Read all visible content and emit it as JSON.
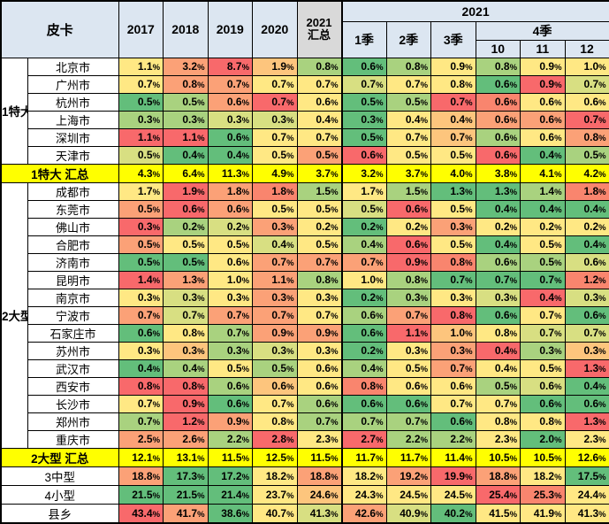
{
  "header": {
    "corner": "皮卡",
    "years": [
      "2017",
      "2018",
      "2019",
      "2020"
    ],
    "summary_line1": "2021",
    "summary_line2": "汇总",
    "group_2021": "2021",
    "quarters": [
      "1季",
      "2季",
      "3季"
    ],
    "q4": "4季",
    "months": [
      "10",
      "11",
      "12"
    ]
  },
  "colors": {
    "header_bg": "#DCE6F1",
    "summary_header_bg": "#D9D9D9",
    "highlight": "#FFFF00",
    "palette": {
      "g": "#63BE7B",
      "lg": "#A9D27F",
      "yg": "#D8DF82",
      "y": "#FFE884",
      "go": "#FDC57D",
      "o": "#FBA177",
      "do": "#F9856E",
      "r": "#F8696B"
    }
  },
  "chart_data": {
    "type": "heatmap",
    "unit": "%",
    "title": "皮卡",
    "columns": [
      "2017",
      "2018",
      "2019",
      "2020",
      "2021汇总",
      "1季",
      "2季",
      "3季",
      "10",
      "11",
      "12"
    ],
    "column_groups": {
      "year_2021_spans": [
        "1季",
        "2季",
        "3季",
        "10",
        "11",
        "12"
      ],
      "q4_spans": [
        "10",
        "11",
        "12"
      ]
    },
    "groups": [
      {
        "label": "1特大",
        "rows": 6
      },
      {
        "label": "2大型",
        "rows": 15
      }
    ],
    "rows": [
      {
        "kind": "city",
        "group": "1特大",
        "group_rows": 6,
        "group_start": true,
        "label": "北京市",
        "values": [
          1.1,
          3.2,
          8.7,
          1.9,
          0.8,
          0.6,
          0.8,
          0.9,
          0.8,
          0.9,
          1.0
        ],
        "colors": [
          "y",
          "o",
          "r",
          "go",
          "lg",
          "g",
          "lg",
          "y",
          "lg",
          "y",
          "y"
        ]
      },
      {
        "kind": "city",
        "group": "1特大",
        "label": "广州市",
        "values": [
          0.7,
          0.8,
          0.7,
          0.7,
          0.7,
          0.7,
          0.7,
          0.8,
          0.6,
          0.9,
          0.7
        ],
        "colors": [
          "y",
          "o",
          "o",
          "y",
          "y",
          "yg",
          "y",
          "y",
          "g",
          "r",
          "yg"
        ]
      },
      {
        "kind": "city",
        "group": "1特大",
        "label": "杭州市",
        "values": [
          0.5,
          0.5,
          0.6,
          0.7,
          0.6,
          0.5,
          0.5,
          0.7,
          0.6,
          0.6,
          0.6
        ],
        "colors": [
          "g",
          "lg",
          "o",
          "r",
          "y",
          "g",
          "lg",
          "r",
          "do",
          "y",
          "y"
        ]
      },
      {
        "kind": "city",
        "group": "1特大",
        "label": "上海市",
        "values": [
          0.3,
          0.3,
          0.3,
          0.3,
          0.4,
          0.3,
          0.4,
          0.4,
          0.6,
          0.6,
          0.7
        ],
        "colors": [
          "lg",
          "lg",
          "yg",
          "yg",
          "y",
          "g",
          "y",
          "go",
          "o",
          "o",
          "r"
        ]
      },
      {
        "kind": "city",
        "group": "1特大",
        "label": "深圳市",
        "values": [
          1.1,
          1.1,
          0.6,
          0.7,
          0.7,
          0.5,
          0.7,
          0.7,
          0.6,
          0.6,
          0.8
        ],
        "colors": [
          "r",
          "r",
          "g",
          "y",
          "y",
          "g",
          "y",
          "go",
          "lg",
          "y",
          "o"
        ]
      },
      {
        "kind": "city",
        "group": "1特大",
        "label": "天津市",
        "values": [
          0.5,
          0.4,
          0.4,
          0.5,
          0.5,
          0.6,
          0.5,
          0.5,
          0.6,
          0.4,
          0.5
        ],
        "colors": [
          "yg",
          "g",
          "g",
          "y",
          "o",
          "r",
          "y",
          "y",
          "r",
          "g",
          "lg"
        ]
      },
      {
        "kind": "summary",
        "label": "1特大 汇总",
        "values": [
          4.3,
          6.4,
          11.3,
          4.9,
          3.7,
          3.2,
          3.7,
          4.0,
          3.8,
          4.1,
          4.2
        ]
      },
      {
        "kind": "city",
        "group": "2大型",
        "group_rows": 15,
        "group_start": true,
        "label": "成都市",
        "values": [
          1.7,
          1.9,
          1.8,
          1.8,
          1.5,
          1.7,
          1.5,
          1.3,
          1.3,
          1.4,
          1.8
        ],
        "colors": [
          "y",
          "r",
          "o",
          "do",
          "lg",
          "y",
          "lg",
          "g",
          "g",
          "lg",
          "do"
        ]
      },
      {
        "kind": "city",
        "group": "2大型",
        "label": "东莞市",
        "values": [
          0.5,
          0.6,
          0.6,
          0.5,
          0.5,
          0.5,
          0.6,
          0.5,
          0.4,
          0.4,
          0.4
        ],
        "colors": [
          "o",
          "r",
          "o",
          "y",
          "y",
          "yg",
          "r",
          "y",
          "g",
          "g",
          "g"
        ]
      },
      {
        "kind": "city",
        "group": "2大型",
        "label": "佛山市",
        "values": [
          0.3,
          0.2,
          0.2,
          0.3,
          0.2,
          0.2,
          0.2,
          0.3,
          0.2,
          0.2,
          0.2
        ],
        "colors": [
          "r",
          "lg",
          "yg",
          "o",
          "y",
          "g",
          "y",
          "o",
          "y",
          "y",
          "y"
        ]
      },
      {
        "kind": "city",
        "group": "2大型",
        "label": "合肥市",
        "values": [
          0.5,
          0.5,
          0.5,
          0.4,
          0.5,
          0.4,
          0.6,
          0.5,
          0.4,
          0.5,
          0.4
        ],
        "colors": [
          "o",
          "y",
          "y",
          "yg",
          "y",
          "lg",
          "r",
          "y",
          "g",
          "y",
          "g"
        ]
      },
      {
        "kind": "city",
        "group": "2大型",
        "label": "济南市",
        "values": [
          0.5,
          0.5,
          0.6,
          0.7,
          0.7,
          0.7,
          0.9,
          0.8,
          0.6,
          0.5,
          0.6
        ],
        "colors": [
          "g",
          "g",
          "y",
          "o",
          "o",
          "o",
          "r",
          "do",
          "lg",
          "lg",
          "yg"
        ]
      },
      {
        "kind": "city",
        "group": "2大型",
        "label": "昆明市",
        "values": [
          1.4,
          1.3,
          1.0,
          1.1,
          0.8,
          1.0,
          0.8,
          0.7,
          0.7,
          0.7,
          1.2
        ],
        "colors": [
          "r",
          "o",
          "y",
          "o",
          "lg",
          "y",
          "lg",
          "g",
          "g",
          "g",
          "do"
        ]
      },
      {
        "kind": "city",
        "group": "2大型",
        "label": "南京市",
        "values": [
          0.3,
          0.3,
          0.3,
          0.3,
          0.3,
          0.2,
          0.3,
          0.3,
          0.3,
          0.4,
          0.3
        ],
        "colors": [
          "y",
          "yg",
          "y",
          "o",
          "y",
          "g",
          "lg",
          "y",
          "yg",
          "r",
          "yg"
        ]
      },
      {
        "kind": "city",
        "group": "2大型",
        "label": "宁波市",
        "values": [
          0.7,
          0.7,
          0.7,
          0.7,
          0.7,
          0.6,
          0.7,
          0.8,
          0.6,
          0.7,
          0.6
        ],
        "colors": [
          "o",
          "yg",
          "o",
          "o",
          "y",
          "lg",
          "o",
          "r",
          "g",
          "y",
          "g"
        ]
      },
      {
        "kind": "city",
        "group": "2大型",
        "label": "石家庄市",
        "values": [
          0.6,
          0.8,
          0.7,
          0.9,
          0.9,
          0.6,
          1.1,
          1.0,
          0.8,
          0.7,
          0.7
        ],
        "colors": [
          "g",
          "y",
          "lg",
          "o",
          "o",
          "g",
          "r",
          "go",
          "y",
          "yg",
          "yg"
        ]
      },
      {
        "kind": "city",
        "group": "2大型",
        "label": "苏州市",
        "values": [
          0.3,
          0.3,
          0.3,
          0.3,
          0.3,
          0.2,
          0.3,
          0.3,
          0.4,
          0.3,
          0.3
        ],
        "colors": [
          "y",
          "go",
          "lg",
          "yg",
          "y",
          "g",
          "y",
          "o",
          "r",
          "lg",
          "go"
        ]
      },
      {
        "kind": "city",
        "group": "2大型",
        "label": "武汉市",
        "values": [
          0.4,
          0.4,
          0.5,
          0.5,
          0.6,
          0.4,
          0.5,
          0.7,
          0.4,
          0.5,
          1.3
        ],
        "colors": [
          "g",
          "lg",
          "y",
          "lg",
          "y",
          "lg",
          "y",
          "o",
          "y",
          "y",
          "r"
        ]
      },
      {
        "kind": "city",
        "group": "2大型",
        "label": "西安市",
        "values": [
          0.8,
          0.8,
          0.6,
          0.6,
          0.6,
          0.8,
          0.6,
          0.6,
          0.5,
          0.6,
          0.4
        ],
        "colors": [
          "r",
          "r",
          "lg",
          "go",
          "y",
          "do",
          "y",
          "y",
          "lg",
          "yg",
          "g"
        ]
      },
      {
        "kind": "city",
        "group": "2大型",
        "label": "长沙市",
        "values": [
          0.7,
          0.9,
          0.6,
          0.7,
          0.6,
          0.6,
          0.6,
          0.7,
          0.7,
          0.6,
          0.6
        ],
        "colors": [
          "y",
          "r",
          "g",
          "y",
          "lg",
          "g",
          "g",
          "y",
          "y",
          "g",
          "g"
        ]
      },
      {
        "kind": "city",
        "group": "2大型",
        "label": "郑州市",
        "values": [
          0.7,
          1.2,
          0.9,
          0.8,
          0.7,
          0.7,
          0.7,
          0.6,
          0.8,
          0.8,
          1.3
        ],
        "colors": [
          "lg",
          "r",
          "o",
          "y",
          "lg",
          "lg",
          "lg",
          "g",
          "y",
          "y",
          "r"
        ]
      },
      {
        "kind": "city",
        "group": "2大型",
        "label": "重庆市",
        "values": [
          2.5,
          2.6,
          2.2,
          2.8,
          2.3,
          2.7,
          2.2,
          2.2,
          2.3,
          2.0,
          2.3
        ],
        "colors": [
          "o",
          "o",
          "lg",
          "r",
          "y",
          "r",
          "lg",
          "lg",
          "y",
          "g",
          "y"
        ]
      },
      {
        "kind": "summary",
        "label": "2大型 汇总",
        "values": [
          12.1,
          13.1,
          11.5,
          12.5,
          11.5,
          11.7,
          11.7,
          11.4,
          10.5,
          10.5,
          12.6
        ]
      },
      {
        "kind": "category",
        "label": "3中型",
        "values": [
          18.8,
          17.3,
          17.2,
          18.2,
          18.8,
          18.2,
          19.2,
          19.9,
          18.8,
          18.2,
          17.5
        ],
        "colors": [
          "o",
          "g",
          "g",
          "y",
          "o",
          "y",
          "o",
          "r",
          "o",
          "y",
          "g"
        ]
      },
      {
        "kind": "category",
        "label": "4小型",
        "values": [
          21.5,
          21.5,
          21.4,
          23.7,
          24.6,
          24.3,
          24.5,
          24.5,
          25.4,
          25.3,
          24.4
        ],
        "colors": [
          "g",
          "g",
          "g",
          "y",
          "go",
          "y",
          "y",
          "y",
          "r",
          "do",
          "y"
        ]
      },
      {
        "kind": "category",
        "label": "县乡",
        "values": [
          43.4,
          41.7,
          38.6,
          40.7,
          41.3,
          42.6,
          40.9,
          40.2,
          41.5,
          41.9,
          41.3
        ],
        "colors": [
          "r",
          "o",
          "g",
          "y",
          "yg",
          "o",
          "yg",
          "g",
          "y",
          "y",
          "y"
        ]
      }
    ]
  }
}
